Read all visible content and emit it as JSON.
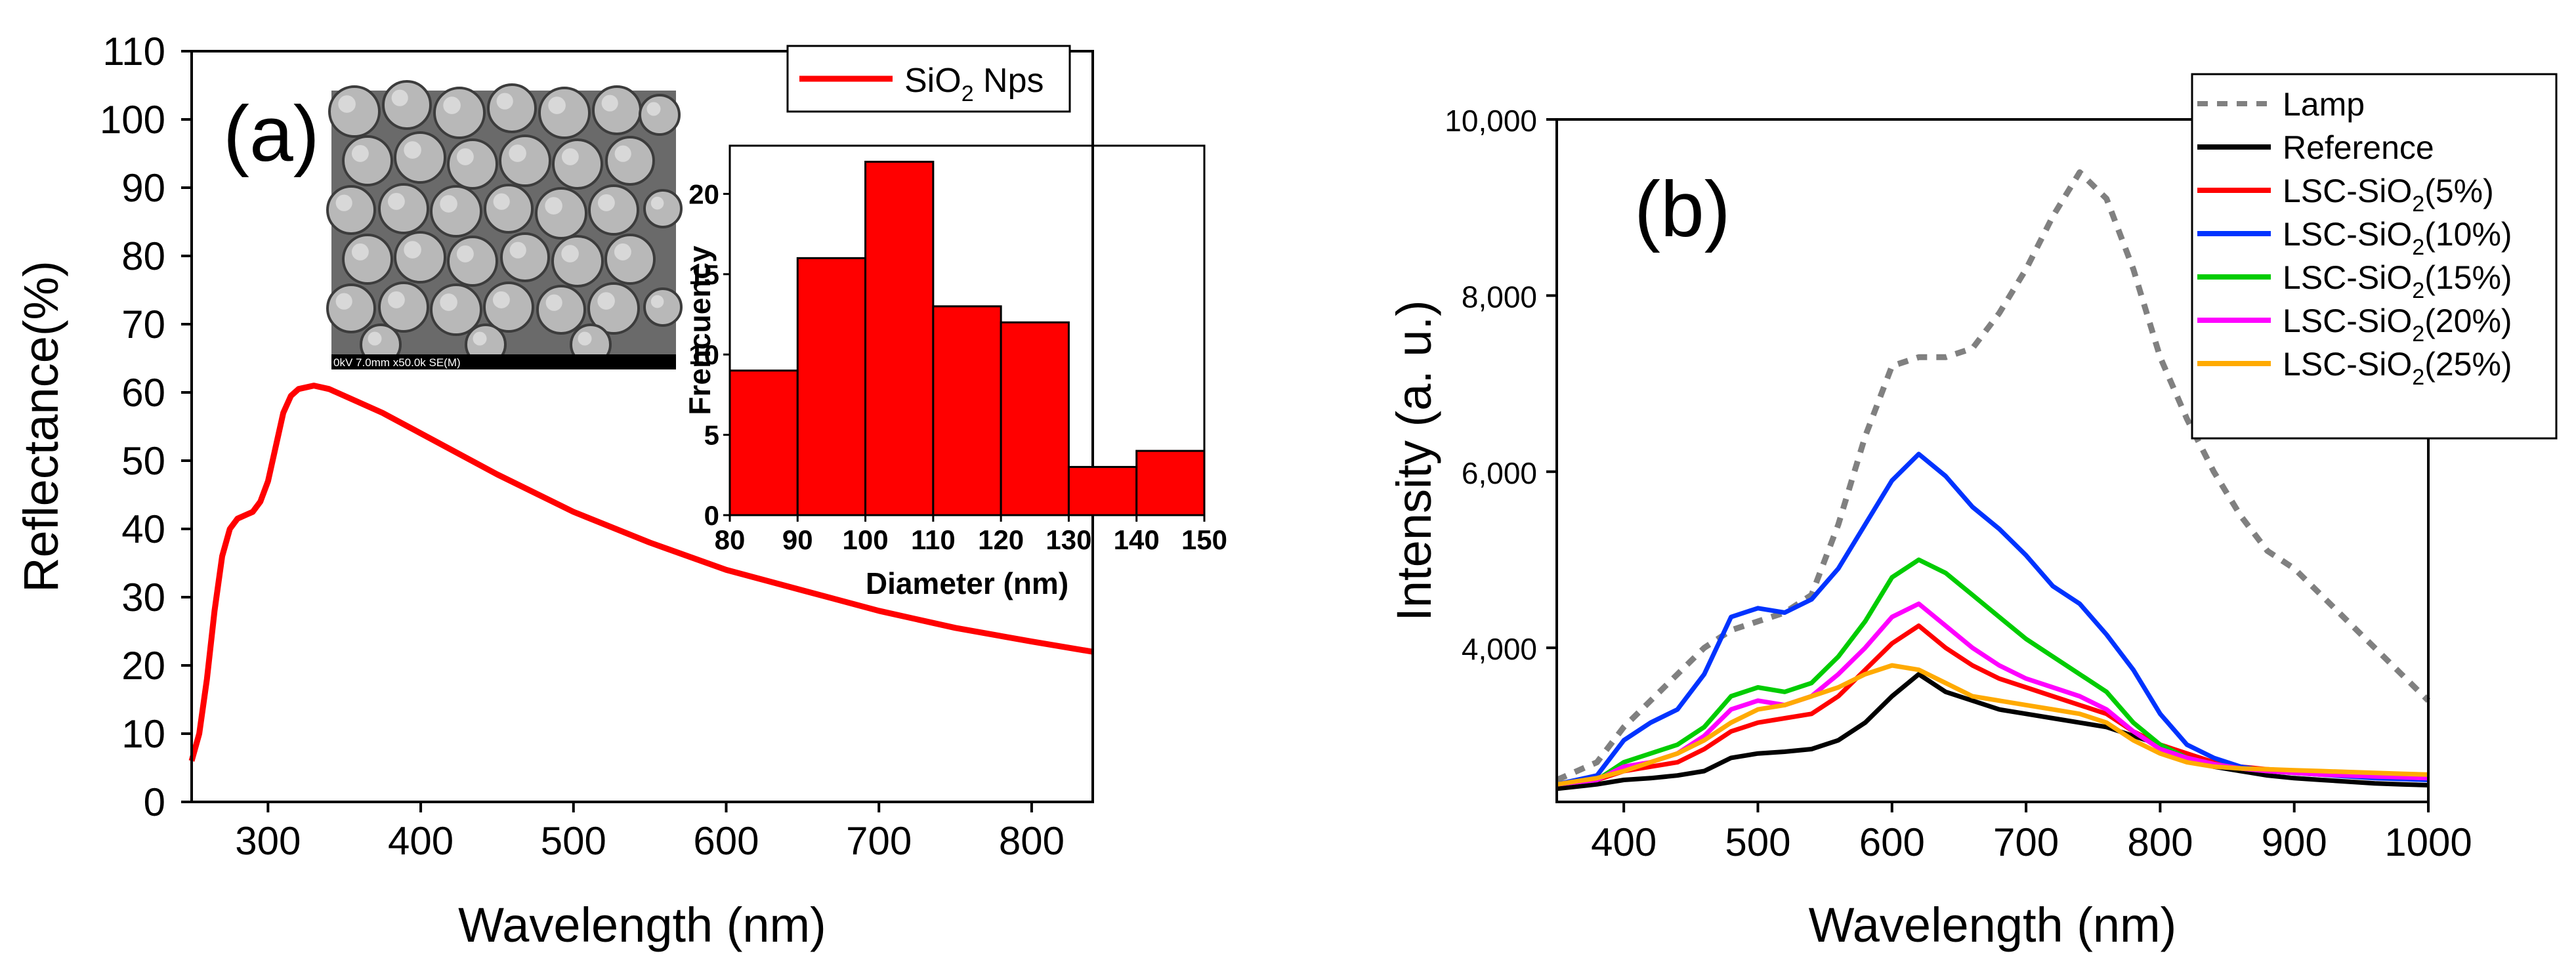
{
  "panel_a": {
    "label": "(a)",
    "legend_label": "SiO",
    "legend_sub": "2",
    "legend_suffix": " Nps",
    "sem_caption": "0kV 7.0mm x50.0k SE(M)",
    "chart_data": {
      "type": "line",
      "title": "",
      "xlabel": "Wavelength (nm)",
      "ylabel": "Reflectance(%)",
      "xlim": [
        250,
        840
      ],
      "ylim": [
        0,
        110
      ],
      "xticks": [
        300,
        400,
        500,
        600,
        700,
        800
      ],
      "yticks": [
        0,
        10,
        20,
        30,
        40,
        50,
        60,
        70,
        80,
        90,
        100,
        110
      ],
      "series": [
        {
          "name": "SiO2 Nps",
          "color": "#ff0000",
          "x": [
            250,
            255,
            260,
            265,
            270,
            275,
            280,
            285,
            290,
            295,
            300,
            305,
            310,
            315,
            320,
            330,
            340,
            350,
            375,
            400,
            450,
            500,
            550,
            600,
            650,
            700,
            750,
            800,
            840
          ],
          "y": [
            6,
            10,
            18,
            28,
            36,
            40,
            41.5,
            42,
            42.5,
            44,
            47,
            52,
            57,
            59.5,
            60.5,
            61,
            60.5,
            59.5,
            57,
            54,
            48,
            42.5,
            38,
            34,
            31,
            28,
            25.5,
            23.5,
            22
          ]
        }
      ]
    },
    "histogram": {
      "type": "bar",
      "xlabel": "Diameter (nm)",
      "ylabel": "Frencuency",
      "xlim": [
        80,
        150
      ],
      "ylim": [
        0,
        23
      ],
      "xticks": [
        80,
        90,
        100,
        110,
        120,
        130,
        140,
        150
      ],
      "yticks": [
        0,
        5,
        10,
        15,
        20
      ],
      "bin_edges": [
        80,
        90,
        100,
        110,
        120,
        130,
        140,
        150
      ],
      "values": [
        9,
        16,
        22,
        13,
        12,
        3,
        4
      ],
      "color": "#ff0000"
    }
  },
  "panel_b": {
    "label": "(b)",
    "chart_data": {
      "type": "line",
      "title": "",
      "xlabel": "Wavelength (nm)",
      "ylabel": "Intensity (a. u.)",
      "xlim": [
        350,
        1000
      ],
      "ylim": [
        2250,
        10000
      ],
      "xticks": [
        400,
        500,
        600,
        700,
        800,
        900,
        1000
      ],
      "yticks": [
        4000,
        6000,
        8000,
        10000
      ],
      "ytick_labels": [
        "4,000",
        "6,000",
        "8,000",
        "10,000"
      ],
      "series": [
        {
          "name": "Lamp",
          "legend_main": "Lamp",
          "legend_sub": "",
          "legend_tail": "",
          "color": "#808080",
          "dashed": true,
          "x": [
            350,
            380,
            400,
            420,
            440,
            460,
            480,
            500,
            520,
            540,
            560,
            580,
            600,
            620,
            640,
            660,
            680,
            700,
            720,
            740,
            760,
            780,
            800,
            820,
            840,
            860,
            880,
            900,
            920,
            940,
            960,
            980,
            1000
          ],
          "y": [
            2500,
            2700,
            3100,
            3400,
            3700,
            4000,
            4200,
            4300,
            4400,
            4600,
            5400,
            6400,
            7200,
            7300,
            7300,
            7400,
            7800,
            8300,
            8900,
            9400,
            9100,
            8300,
            7300,
            6600,
            6000,
            5500,
            5100,
            4900,
            4600,
            4300,
            4000,
            3700,
            3400
          ]
        },
        {
          "name": "Reference",
          "legend_main": "Reference",
          "legend_sub": "",
          "legend_tail": "",
          "color": "#000000",
          "dashed": false,
          "x": [
            350,
            380,
            400,
            420,
            440,
            460,
            480,
            500,
            520,
            540,
            560,
            580,
            600,
            620,
            640,
            660,
            680,
            700,
            720,
            740,
            760,
            780,
            800,
            820,
            840,
            860,
            880,
            900,
            920,
            940,
            960,
            980,
            1000
          ],
          "y": [
            2400,
            2450,
            2500,
            2520,
            2550,
            2600,
            2750,
            2800,
            2820,
            2850,
            2950,
            3150,
            3450,
            3700,
            3500,
            3400,
            3300,
            3250,
            3200,
            3150,
            3100,
            3000,
            2900,
            2750,
            2650,
            2600,
            2550,
            2520,
            2500,
            2480,
            2460,
            2450,
            2440
          ]
        },
        {
          "name": "LSC-SiO2(5%)",
          "legend_main": "LSC-SiO",
          "legend_sub": "2",
          "legend_tail": "(5%)",
          "color": "#ff0000",
          "dashed": false,
          "x": [
            350,
            380,
            400,
            420,
            440,
            460,
            480,
            500,
            520,
            540,
            560,
            580,
            600,
            620,
            640,
            660,
            680,
            700,
            720,
            740,
            760,
            780,
            800,
            820,
            840,
            860,
            880,
            900,
            920,
            940,
            960,
            980,
            1000
          ],
          "y": [
            2450,
            2500,
            2600,
            2650,
            2700,
            2850,
            3050,
            3150,
            3200,
            3250,
            3450,
            3750,
            4050,
            4250,
            4000,
            3800,
            3650,
            3550,
            3450,
            3350,
            3250,
            3050,
            2900,
            2800,
            2700,
            2650,
            2620,
            2600,
            2580,
            2560,
            2540,
            2520,
            2510
          ]
        },
        {
          "name": "LSC-SiO2(10%)",
          "legend_main": "LSC-SiO",
          "legend_sub": "2",
          "legend_tail": "(10%)",
          "color": "#0033ff",
          "dashed": false,
          "x": [
            350,
            380,
            400,
            420,
            440,
            460,
            480,
            500,
            520,
            540,
            560,
            580,
            600,
            620,
            640,
            660,
            680,
            700,
            720,
            740,
            760,
            780,
            800,
            820,
            840,
            860,
            880,
            900,
            920,
            940,
            960,
            980,
            1000
          ],
          "y": [
            2450,
            2550,
            2950,
            3150,
            3300,
            3700,
            4350,
            4450,
            4400,
            4550,
            4900,
            5400,
            5900,
            6200,
            5950,
            5600,
            5350,
            5050,
            4700,
            4500,
            4150,
            3750,
            3250,
            2900,
            2750,
            2650,
            2600,
            2580,
            2560,
            2540,
            2520,
            2510,
            2500
          ]
        },
        {
          "name": "LSC-SiO2(15%)",
          "legend_main": "LSC-SiO",
          "legend_sub": "2",
          "legend_tail": "(15%)",
          "color": "#00cc00",
          "dashed": false,
          "x": [
            350,
            380,
            400,
            420,
            440,
            460,
            480,
            500,
            520,
            540,
            560,
            580,
            600,
            620,
            640,
            660,
            680,
            700,
            720,
            740,
            760,
            780,
            800,
            820,
            840,
            860,
            880,
            900,
            920,
            940,
            960,
            980,
            1000
          ],
          "y": [
            2450,
            2500,
            2700,
            2800,
            2900,
            3100,
            3450,
            3550,
            3500,
            3600,
            3900,
            4300,
            4800,
            5000,
            4850,
            4600,
            4350,
            4100,
            3900,
            3700,
            3500,
            3150,
            2900,
            2750,
            2680,
            2630,
            2600,
            2580,
            2560,
            2550,
            2540,
            2530,
            2520
          ]
        },
        {
          "name": "LSC-SiO2(20%)",
          "legend_main": "LSC-SiO",
          "legend_sub": "2",
          "legend_tail": "(20%)",
          "color": "#ff00ff",
          "dashed": false,
          "x": [
            350,
            380,
            400,
            420,
            440,
            460,
            480,
            500,
            520,
            540,
            560,
            580,
            600,
            620,
            640,
            660,
            680,
            700,
            720,
            740,
            760,
            780,
            800,
            820,
            840,
            860,
            880,
            900,
            920,
            940,
            960,
            980,
            1000
          ],
          "y": [
            2450,
            2500,
            2650,
            2700,
            2800,
            3000,
            3300,
            3400,
            3350,
            3450,
            3700,
            4000,
            4350,
            4500,
            4250,
            4000,
            3800,
            3650,
            3550,
            3450,
            3300,
            3050,
            2850,
            2750,
            2680,
            2630,
            2600,
            2580,
            2560,
            2550,
            2540,
            2530,
            2520
          ]
        },
        {
          "name": "LSC-SiO2(25%)",
          "legend_main": "LSC-SiO",
          "legend_sub": "2",
          "legend_tail": "(25%)",
          "color": "#ffaa00",
          "dashed": false,
          "x": [
            350,
            380,
            400,
            420,
            440,
            460,
            480,
            500,
            520,
            540,
            560,
            580,
            600,
            620,
            640,
            660,
            680,
            700,
            720,
            740,
            760,
            780,
            800,
            820,
            840,
            860,
            880,
            900,
            920,
            940,
            960,
            980,
            1000
          ],
          "y": [
            2450,
            2520,
            2600,
            2700,
            2800,
            2950,
            3150,
            3300,
            3350,
            3450,
            3550,
            3700,
            3800,
            3750,
            3600,
            3450,
            3400,
            3350,
            3300,
            3250,
            3150,
            2950,
            2800,
            2700,
            2650,
            2630,
            2620,
            2610,
            2600,
            2590,
            2580,
            2570,
            2560
          ]
        }
      ]
    }
  }
}
